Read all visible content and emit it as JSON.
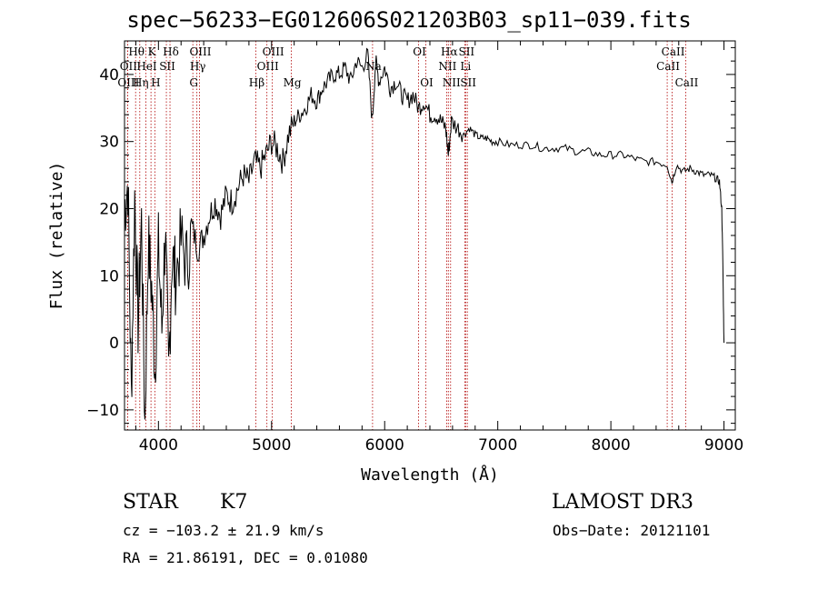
{
  "title": "spec−56233−EG012606S021203B03_sp11−039.fits",
  "chart_data": {
    "type": "line",
    "title": "spec−56233−EG012606S021203B03_sp11−039.fits",
    "xlabel": "Wavelength (Å)",
    "ylabel": "Flux (relative)",
    "xlim": [
      3700,
      9100
    ],
    "ylim": [
      -13,
      45
    ],
    "x_ticks": [
      4000,
      5000,
      6000,
      7000,
      8000,
      9000
    ],
    "x_tick_labels": [
      "4000",
      "5000",
      "6000",
      "7000",
      "8000",
      "9000"
    ],
    "y_ticks": [
      -10,
      0,
      10,
      20,
      30,
      40
    ],
    "y_tick_labels": [
      "−10",
      "0",
      "10",
      "20",
      "30",
      "40"
    ],
    "colors": {
      "spectrum": "#000000",
      "lines": "#b00000",
      "axes": "#000000"
    },
    "spectrum": {
      "x": [
        3700,
        3730,
        3760,
        3790,
        3820,
        3850,
        3880,
        3910,
        3940,
        3970,
        4000,
        4030,
        4060,
        4090,
        4120,
        4150,
        4200,
        4250,
        4300,
        4350,
        4400,
        4450,
        4500,
        4550,
        4600,
        4650,
        4700,
        4750,
        4800,
        4850,
        4900,
        4950,
        5000,
        5050,
        5100,
        5150,
        5200,
        5250,
        5300,
        5350,
        5400,
        5450,
        5500,
        5550,
        5600,
        5650,
        5700,
        5750,
        5800,
        5850,
        5890,
        5920,
        5950,
        6000,
        6050,
        6100,
        6150,
        6200,
        6250,
        6300,
        6350,
        6400,
        6450,
        6500,
        6540,
        6563,
        6590,
        6650,
        6700,
        6750,
        6800,
        6850,
        6900,
        6950,
        7000,
        7100,
        7200,
        7300,
        7400,
        7500,
        7600,
        7700,
        7800,
        7900,
        8000,
        8100,
        8200,
        8300,
        8400,
        8498,
        8540,
        8580,
        8640,
        8700,
        8760,
        8820,
        8880,
        8930,
        8960,
        8980,
        8990,
        9000
      ],
      "y": [
        20,
        24,
        -8,
        22,
        3,
        18,
        -12,
        15,
        8,
        -4,
        14,
        2,
        17,
        -5,
        13,
        10,
        15,
        12,
        17,
        14,
        16,
        19,
        21,
        19,
        22,
        21,
        23,
        25,
        24,
        27,
        26,
        28,
        30,
        29,
        27,
        31,
        33,
        34,
        35,
        37,
        36,
        38,
        39,
        40,
        40,
        41,
        39,
        42,
        41,
        43,
        33,
        42,
        39,
        41,
        38,
        39,
        37,
        36,
        37,
        35,
        36,
        34,
        34,
        33,
        32,
        28,
        33,
        32,
        31,
        32,
        31,
        30.5,
        30.5,
        30,
        30,
        29.5,
        29.5,
        29.5,
        29,
        29,
        29,
        28.5,
        28.5,
        28,
        28,
        28,
        27.5,
        27,
        27,
        26.5,
        24,
        26.5,
        25.5,
        26,
        25.5,
        25,
        25,
        24.5,
        24,
        20,
        12,
        0
      ]
    },
    "emission_lines": [
      {
        "label": "Hθ",
        "x": 3798,
        "row": 1
      },
      {
        "label": "OII",
        "x": 3727,
        "row": 2
      },
      {
        "label": "OIII",
        "x": 3727,
        "row": 3
      },
      {
        "label": "Hη",
        "x": 3835,
        "row": 3
      },
      {
        "label": "K",
        "x": 3934,
        "row": 1
      },
      {
        "label": "HeI",
        "x": 3889,
        "row": 2
      },
      {
        "label": "SII",
        "x": 4070,
        "row": 2
      },
      {
        "label": "H",
        "x": 3968,
        "row": 3
      },
      {
        "label": "Hδ",
        "x": 4102,
        "row": 1
      },
      {
        "label": "OIII",
        "x": 4363,
        "row": 1
      },
      {
        "label": "Hγ",
        "x": 4340,
        "row": 2
      },
      {
        "label": "G",
        "x": 4304,
        "row": 3
      },
      {
        "label": "OIII",
        "x": 5007,
        "row": 1
      },
      {
        "label": "OIII",
        "x": 4959,
        "row": 2
      },
      {
        "label": "Hβ",
        "x": 4861,
        "row": 3
      },
      {
        "label": "Mg",
        "x": 5175,
        "row": 3
      },
      {
        "label": "Na",
        "x": 5893,
        "row": 2
      },
      {
        "label": "OI",
        "x": 6300,
        "row": 1
      },
      {
        "label": "OI",
        "x": 6364,
        "row": 3
      },
      {
        "label": "Hα",
        "x": 6563,
        "row": 1
      },
      {
        "label": "SII",
        "x": 6716,
        "row": 1
      },
      {
        "label": "NII",
        "x": 6548,
        "row": 2
      },
      {
        "label": "Li",
        "x": 6708,
        "row": 2
      },
      {
        "label": "NII",
        "x": 6583,
        "row": 3
      },
      {
        "label": "SII",
        "x": 6731,
        "row": 3
      },
      {
        "label": "CaII",
        "x": 8542,
        "row": 1
      },
      {
        "label": "CaII",
        "x": 8498,
        "row": 2
      },
      {
        "label": "CaII",
        "x": 8662,
        "row": 3
      }
    ]
  },
  "info": {
    "class_label": "STAR",
    "subclass": "K7",
    "survey": "LAMOST DR3",
    "cz": "cz = −103.2 ± 21.9 km/s",
    "obs_date": "Obs−Date: 20121101",
    "coords": "RA =  21.86191, DEC =    0.01080"
  }
}
